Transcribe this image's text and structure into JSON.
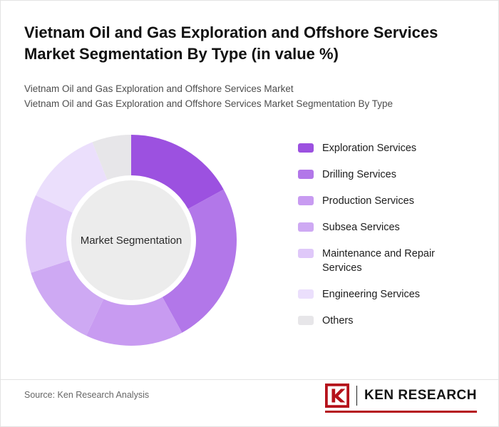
{
  "header": {
    "title": "Vietnam Oil and Gas Exploration and Offshore Services Market Segmentation By Type (in value %)",
    "subtitle_line1": "Vietnam Oil and Gas Exploration and Offshore Services Market",
    "subtitle_line2": "Vietnam Oil and Gas Exploration and Offshore Services Market Segmentation By Type"
  },
  "chart_data": {
    "type": "pie",
    "variant": "donut",
    "title": "Vietnam Oil and Gas Exploration and Offshore Services Market Segmentation By Type (in value %)",
    "center_label": "Market Segmentation",
    "center_circle_color": "#ececec",
    "legend_position": "right",
    "start_angle_deg": 0,
    "direction": "clockwise",
    "units": "value %",
    "segments": [
      {
        "label": "Exploration Services",
        "value": 17,
        "color": "#9c51e0"
      },
      {
        "label": "Drilling Services",
        "value": 25,
        "color": "#b277e9"
      },
      {
        "label": "Production Services",
        "value": 15,
        "color": "#c89bf1"
      },
      {
        "label": "Subsea Services",
        "value": 13,
        "color": "#cea9f3"
      },
      {
        "label": "Maintenance and Repair Services",
        "value": 12,
        "color": "#dfc8f9"
      },
      {
        "label": "Engineering Services",
        "value": 12,
        "color": "#ebdffc"
      },
      {
        "label": "Others",
        "value": 6,
        "color": "#e7e6e9"
      }
    ]
  },
  "footer": {
    "source": "Source: Ken Research Analysis",
    "logo_text": "KEN RESEARCH",
    "brand_color": "#b5121b"
  }
}
